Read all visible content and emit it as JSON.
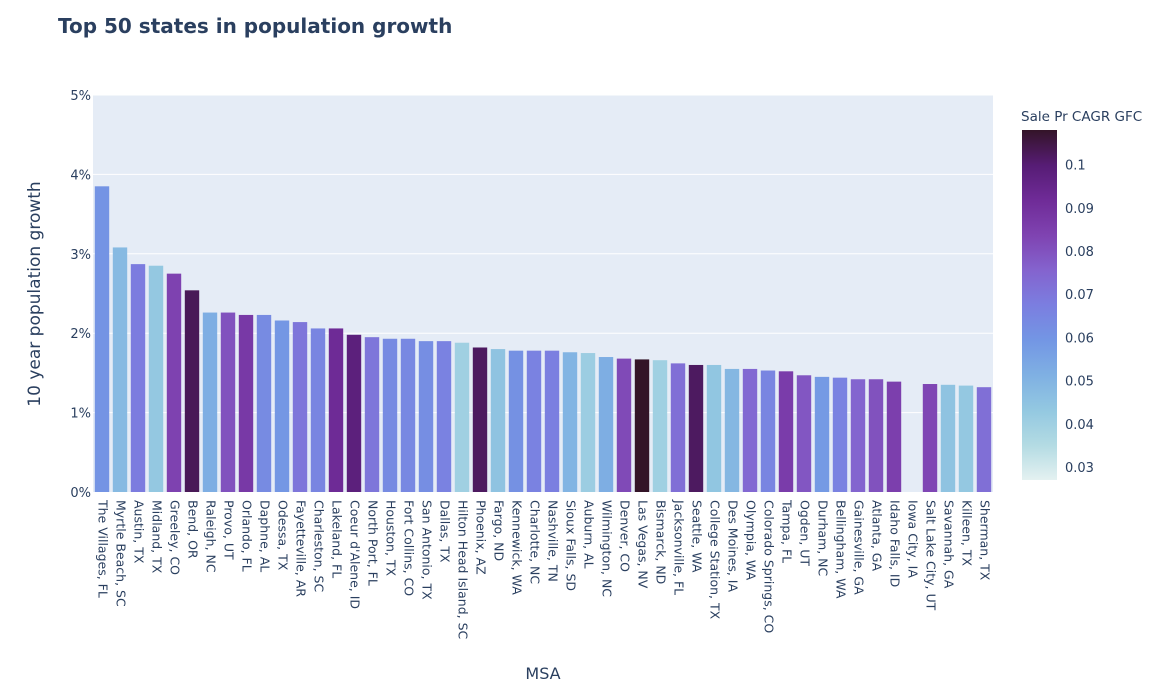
{
  "chart_data": {
    "type": "bar",
    "title": "Top 50 states in population growth",
    "xlabel": "MSA",
    "ylabel": "10 year population growth",
    "ylim": [
      0,
      0.05
    ],
    "yticks": [
      0,
      0.01,
      0.02,
      0.03,
      0.04,
      0.05
    ],
    "ytick_labels": [
      "0%",
      "1%",
      "2%",
      "3%",
      "4%",
      "5%"
    ],
    "grid": true,
    "colorbar": {
      "title": "Sale Pr CAGR GFC",
      "range": [
        0.027,
        0.108
      ],
      "ticks": [
        0.03,
        0.04,
        0.05,
        0.06,
        0.07,
        0.08,
        0.09,
        0.1
      ],
      "tick_labels": [
        "0.03",
        "0.04",
        "0.05",
        "0.06",
        "0.07",
        "0.08",
        "0.09",
        "0.1"
      ],
      "colorscale": [
        "#e4f1f1",
        "#b3dbe3",
        "#93c8e1",
        "#7fb0e3",
        "#7396e4",
        "#7b7ee0",
        "#8463ce",
        "#7f43b1",
        "#6f2b97",
        "#561c74",
        "#331428"
      ]
    },
    "categories": [
      "The Villages, FL",
      "Myrtle Beach, SC",
      "Austin, TX",
      "Midland, TX",
      "Greeley, CO",
      "Bend, OR",
      "Raleigh, NC",
      "Provo, UT",
      "Orlando, FL",
      "Daphne, AL",
      "Odessa, TX",
      "Fayetteville, AR",
      "Charleston, SC",
      "Lakeland, FL",
      "Coeur d'Alene, ID",
      "North Port, FL",
      "Houston, TX",
      "Fort Collins, CO",
      "San Antonio, TX",
      "Dallas, TX",
      "Hilton Head Island, SC",
      "Phoenix, AZ",
      "Fargo, ND",
      "Kennewick, WA",
      "Charlotte, NC",
      "Nashville, TN",
      "Sioux Falls, SD",
      "Auburn, AL",
      "Wilmington, NC",
      "Denver, CO",
      "Las Vegas, NV",
      "Bismarck, ND",
      "Jacksonville, FL",
      "Seattle, WA",
      "College Station, TX",
      "Des Moines, IA",
      "Olympia, WA",
      "Colorado Springs, CO",
      "Tampa, FL",
      "Ogden, UT",
      "Durham, NC",
      "Bellingham, WA",
      "Gainesville, GA",
      "Atlanta, GA",
      "Idaho Falls, ID",
      "Iowa City, IA",
      "Salt Lake City, UT",
      "Savannah, GA",
      "Killeen, TX",
      "Sherman, TX"
    ],
    "values": [
      0.0385,
      0.0308,
      0.0287,
      0.0285,
      0.0275,
      0.0254,
      0.0226,
      0.0226,
      0.0223,
      0.0223,
      0.0216,
      0.0214,
      0.0206,
      0.0206,
      0.0198,
      0.0195,
      0.0193,
      0.0193,
      0.019,
      0.019,
      0.0188,
      0.0182,
      0.018,
      0.0178,
      0.0178,
      0.0178,
      0.0176,
      0.0175,
      0.017,
      0.0168,
      0.0167,
      0.0166,
      0.0162,
      0.016,
      0.016,
      0.0155,
      0.0155,
      0.0153,
      0.0152,
      0.0147,
      0.0145,
      0.0144,
      0.0142,
      0.0142,
      0.0139,
      0.0,
      0.0136,
      0.0135,
      0.0134,
      0.0132
    ],
    "color_values": [
      0.06,
      0.048,
      0.068,
      0.043,
      0.084,
      0.103,
      0.052,
      0.08,
      0.087,
      0.063,
      0.059,
      0.07,
      0.065,
      0.092,
      0.098,
      0.07,
      0.063,
      0.064,
      0.062,
      0.066,
      0.04,
      0.102,
      0.045,
      0.061,
      0.066,
      0.067,
      0.05,
      0.041,
      0.052,
      0.082,
      0.108,
      0.04,
      0.072,
      0.102,
      0.044,
      0.049,
      0.074,
      0.065,
      0.086,
      0.079,
      0.058,
      0.066,
      0.075,
      0.08,
      0.085,
      0.0,
      0.083,
      0.045,
      0.043,
      0.072
    ]
  }
}
